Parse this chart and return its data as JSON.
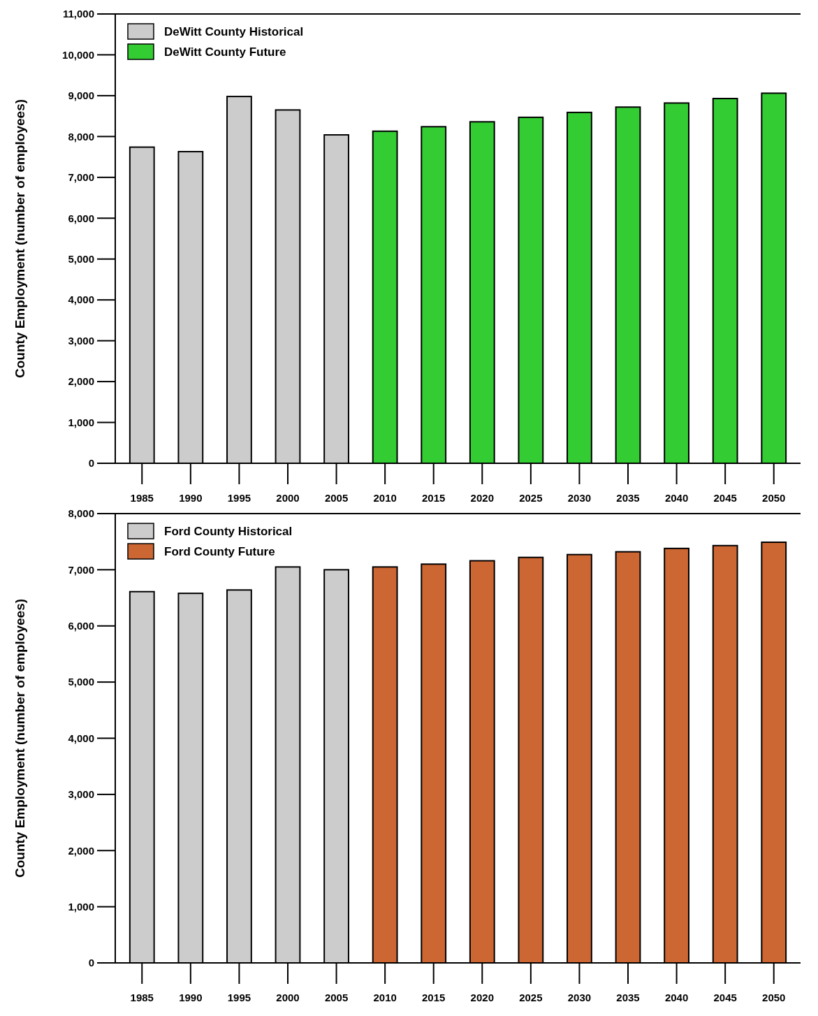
{
  "chart_data": [
    {
      "type": "bar",
      "ylabel": "County Employment (number of employees)",
      "categories": [
        "1985",
        "1990",
        "1995",
        "2000",
        "2005",
        "2010",
        "2015",
        "2020",
        "2025",
        "2030",
        "2035",
        "2040",
        "2045",
        "2050"
      ],
      "series": [
        {
          "name": "DeWitt County Historical",
          "color": "#cccccc",
          "values": [
            7740,
            7630,
            8980,
            8650,
            8040,
            null,
            null,
            null,
            null,
            null,
            null,
            null,
            null,
            null
          ]
        },
        {
          "name": "DeWitt County Future",
          "color": "#33cc33",
          "values": [
            null,
            null,
            null,
            null,
            null,
            8130,
            8240,
            8360,
            8470,
            8590,
            8720,
            8820,
            8930,
            9060
          ]
        }
      ],
      "ylim": [
        0,
        11000
      ],
      "yticks": [
        {
          "value": 0,
          "label": "0"
        },
        {
          "value": 1000,
          "label": "1,000"
        },
        {
          "value": 2000,
          "label": "2,000"
        },
        {
          "value": 3000,
          "label": "3,000"
        },
        {
          "value": 4000,
          "label": "4,000"
        },
        {
          "value": 5000,
          "label": "5,000"
        },
        {
          "value": 6000,
          "label": "6,000"
        },
        {
          "value": 7000,
          "label": "7,000"
        },
        {
          "value": 8000,
          "label": "8,000"
        },
        {
          "value": 9000,
          "label": "9,000"
        },
        {
          "value": 10000,
          "label": "10,000"
        },
        {
          "value": 11000,
          "label": "11,000"
        }
      ],
      "legend": "top left",
      "grid": false
    },
    {
      "type": "bar",
      "ylabel": "County Employment (number of employees)",
      "categories": [
        "1985",
        "1990",
        "1995",
        "2000",
        "2005",
        "2010",
        "2015",
        "2020",
        "2025",
        "2030",
        "2035",
        "2040",
        "2045",
        "2050"
      ],
      "series": [
        {
          "name": "Ford County Historical",
          "color": "#cccccc",
          "values": [
            6610,
            6580,
            6640,
            7050,
            7000,
            null,
            null,
            null,
            null,
            null,
            null,
            null,
            null,
            null
          ]
        },
        {
          "name": "Ford County Future",
          "color": "#cc6633",
          "values": [
            null,
            null,
            null,
            null,
            null,
            7050,
            7100,
            7160,
            7220,
            7270,
            7320,
            7380,
            7430,
            7490
          ]
        }
      ],
      "ylim": [
        0,
        8000
      ],
      "yticks": [
        {
          "value": 0,
          "label": "0"
        },
        {
          "value": 1000,
          "label": "1,000"
        },
        {
          "value": 2000,
          "label": "2,000"
        },
        {
          "value": 3000,
          "label": "3,000"
        },
        {
          "value": 4000,
          "label": "4,000"
        },
        {
          "value": 5000,
          "label": "5,000"
        },
        {
          "value": 6000,
          "label": "6,000"
        },
        {
          "value": 7000,
          "label": "7,000"
        },
        {
          "value": 8000,
          "label": "8,000"
        }
      ],
      "legend": "top left",
      "grid": false
    }
  ]
}
